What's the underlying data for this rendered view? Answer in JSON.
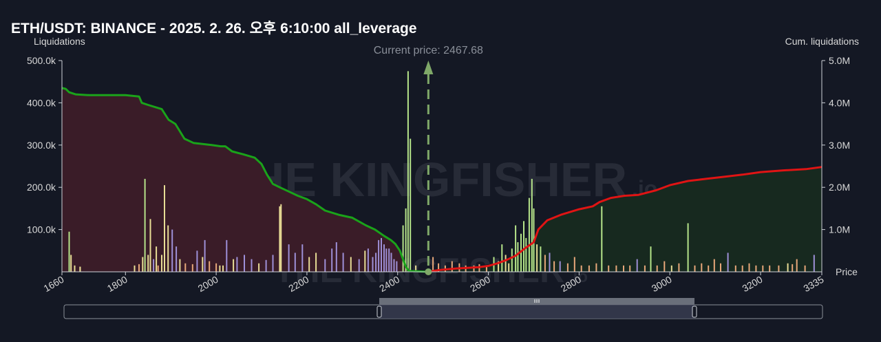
{
  "chart_data": {
    "type": "bar",
    "title": "ETH/USDT: BINANCE - 2025. 2. 26. 오후 6:10:00 all_leverage",
    "ylabel_left": "Liquidations",
    "ylabel_right": "Cum. liquidations",
    "xlabel": "Price",
    "current_price_label": "Current price: 2467.68",
    "current_price": 2467.68,
    "xlim": [
      1660,
      3335
    ],
    "ylim_left": [
      0,
      500000
    ],
    "ylim_right": [
      0,
      5000000
    ],
    "x_ticks": [
      "1660",
      "1800",
      "2000",
      "2200",
      "2400",
      "2600",
      "2800",
      "3000",
      "3200",
      "3335"
    ],
    "y_ticks_left": [
      "100.0k",
      "200.0k",
      "300.0k",
      "400.0k",
      "500.0k"
    ],
    "y_ticks_right": [
      "1.0M",
      "2.0M",
      "3.0M",
      "4.0M",
      "5.0M"
    ],
    "watermark": "THE KINGFISHER",
    "watermark_suffix": ".io",
    "bars": [
      {
        "x": 1676,
        "y": 95000,
        "c": "green"
      },
      {
        "x": 1680,
        "y": 40000,
        "c": "yellow"
      },
      {
        "x": 1688,
        "y": 15000,
        "c": "yellow"
      },
      {
        "x": 1700,
        "y": 12000,
        "c": "yellow"
      },
      {
        "x": 1700,
        "y": 12000,
        "c": "yellow"
      },
      {
        "x": 1820,
        "y": 15000,
        "c": "yellow"
      },
      {
        "x": 1830,
        "y": 18000,
        "c": "orange"
      },
      {
        "x": 1838,
        "y": 35000,
        "c": "yellow"
      },
      {
        "x": 1843,
        "y": 220000,
        "c": "green"
      },
      {
        "x": 1850,
        "y": 40000,
        "c": "yellow"
      },
      {
        "x": 1855,
        "y": 125000,
        "c": "yellow"
      },
      {
        "x": 1862,
        "y": 30000,
        "c": "purple"
      },
      {
        "x": 1868,
        "y": 60000,
        "c": "yellow"
      },
      {
        "x": 1872,
        "y": 15000,
        "c": "orange"
      },
      {
        "x": 1880,
        "y": 40000,
        "c": "yellow"
      },
      {
        "x": 1886,
        "y": 205000,
        "c": "yellow"
      },
      {
        "x": 1894,
        "y": 110000,
        "c": "yellow"
      },
      {
        "x": 1903,
        "y": 100000,
        "c": "purple"
      },
      {
        "x": 1912,
        "y": 60000,
        "c": "purple"
      },
      {
        "x": 1920,
        "y": 30000,
        "c": "yellow"
      },
      {
        "x": 1932,
        "y": 20000,
        "c": "orange"
      },
      {
        "x": 1948,
        "y": 18000,
        "c": "orange"
      },
      {
        "x": 1958,
        "y": 50000,
        "c": "purple"
      },
      {
        "x": 1970,
        "y": 35000,
        "c": "yellow"
      },
      {
        "x": 1975,
        "y": 75000,
        "c": "purple"
      },
      {
        "x": 1985,
        "y": 25000,
        "c": "orange"
      },
      {
        "x": 2000,
        "y": 20000,
        "c": "orange"
      },
      {
        "x": 2008,
        "y": 15000,
        "c": "yellow"
      },
      {
        "x": 2015,
        "y": 15000,
        "c": "yellow"
      },
      {
        "x": 2023,
        "y": 75000,
        "c": "purple"
      },
      {
        "x": 2038,
        "y": 30000,
        "c": "yellow"
      },
      {
        "x": 2046,
        "y": 35000,
        "c": "purple"
      },
      {
        "x": 2062,
        "y": 40000,
        "c": "purple"
      },
      {
        "x": 2078,
        "y": 30000,
        "c": "purple"
      },
      {
        "x": 2094,
        "y": 20000,
        "c": "yellow"
      },
      {
        "x": 2110,
        "y": 28000,
        "c": "purple"
      },
      {
        "x": 2125,
        "y": 40000,
        "c": "purple"
      },
      {
        "x": 2140,
        "y": 155000,
        "c": "yellow"
      },
      {
        "x": 2143,
        "y": 160000,
        "c": "yellow"
      },
      {
        "x": 2160,
        "y": 65000,
        "c": "purple"
      },
      {
        "x": 2174,
        "y": 45000,
        "c": "purple"
      },
      {
        "x": 2190,
        "y": 65000,
        "c": "purple"
      },
      {
        "x": 2205,
        "y": 35000,
        "c": "yellow"
      },
      {
        "x": 2220,
        "y": 45000,
        "c": "yellow"
      },
      {
        "x": 2240,
        "y": 30000,
        "c": "purple"
      },
      {
        "x": 2255,
        "y": 55000,
        "c": "purple"
      },
      {
        "x": 2265,
        "y": 70000,
        "c": "purple"
      },
      {
        "x": 2280,
        "y": 45000,
        "c": "purple"
      },
      {
        "x": 2297,
        "y": 35000,
        "c": "yellow"
      },
      {
        "x": 2315,
        "y": 30000,
        "c": "purple"
      },
      {
        "x": 2328,
        "y": 50000,
        "c": "yellow"
      },
      {
        "x": 2335,
        "y": 55000,
        "c": "purple"
      },
      {
        "x": 2345,
        "y": 35000,
        "c": "purple"
      },
      {
        "x": 2352,
        "y": 45000,
        "c": "purple"
      },
      {
        "x": 2358,
        "y": 75000,
        "c": "purple"
      },
      {
        "x": 2364,
        "y": 80000,
        "c": "purple"
      },
      {
        "x": 2370,
        "y": 65000,
        "c": "purple"
      },
      {
        "x": 2375,
        "y": 55000,
        "c": "purple"
      },
      {
        "x": 2381,
        "y": 55000,
        "c": "purple"
      },
      {
        "x": 2386,
        "y": 45000,
        "c": "purple"
      },
      {
        "x": 2392,
        "y": 30000,
        "c": "purple"
      },
      {
        "x": 2398,
        "y": 25000,
        "c": "purple"
      },
      {
        "x": 2412,
        "y": 110000,
        "c": "green"
      },
      {
        "x": 2418,
        "y": 150000,
        "c": "green"
      },
      {
        "x": 2423,
        "y": 475000,
        "c": "green"
      },
      {
        "x": 2428,
        "y": 315000,
        "c": "green"
      },
      {
        "x": 2440,
        "y": 15000,
        "c": "yellow"
      },
      {
        "x": 2478,
        "y": 35000,
        "c": "orange"
      },
      {
        "x": 2490,
        "y": 20000,
        "c": "orange"
      },
      {
        "x": 2505,
        "y": 15000,
        "c": "orange"
      },
      {
        "x": 2520,
        "y": 25000,
        "c": "orange"
      },
      {
        "x": 2536,
        "y": 20000,
        "c": "orange"
      },
      {
        "x": 2550,
        "y": 15000,
        "c": "orange"
      },
      {
        "x": 2568,
        "y": 15000,
        "c": "orange"
      },
      {
        "x": 2580,
        "y": 18000,
        "c": "orange"
      },
      {
        "x": 2596,
        "y": 15000,
        "c": "orange"
      },
      {
        "x": 2612,
        "y": 35000,
        "c": "green"
      },
      {
        "x": 2622,
        "y": 25000,
        "c": "yellow"
      },
      {
        "x": 2630,
        "y": 65000,
        "c": "green"
      },
      {
        "x": 2638,
        "y": 40000,
        "c": "yellow"
      },
      {
        "x": 2645,
        "y": 20000,
        "c": "yellow"
      },
      {
        "x": 2652,
        "y": 55000,
        "c": "green"
      },
      {
        "x": 2660,
        "y": 110000,
        "c": "green"
      },
      {
        "x": 2665,
        "y": 70000,
        "c": "green"
      },
      {
        "x": 2672,
        "y": 90000,
        "c": "green"
      },
      {
        "x": 2678,
        "y": 120000,
        "c": "green"
      },
      {
        "x": 2683,
        "y": 80000,
        "c": "green"
      },
      {
        "x": 2690,
        "y": 175000,
        "c": "green"
      },
      {
        "x": 2696,
        "y": 220000,
        "c": "green"
      },
      {
        "x": 2700,
        "y": 150000,
        "c": "green"
      },
      {
        "x": 2707,
        "y": 65000,
        "c": "yellow"
      },
      {
        "x": 2715,
        "y": 60000,
        "c": "green"
      },
      {
        "x": 2725,
        "y": 40000,
        "c": "orange"
      },
      {
        "x": 2735,
        "y": 45000,
        "c": "purple"
      },
      {
        "x": 2745,
        "y": 25000,
        "c": "orange"
      },
      {
        "x": 2758,
        "y": 25000,
        "c": "purple"
      },
      {
        "x": 2775,
        "y": 20000,
        "c": "orange"
      },
      {
        "x": 2790,
        "y": 35000,
        "c": "orange"
      },
      {
        "x": 2805,
        "y": 15000,
        "c": "orange"
      },
      {
        "x": 2822,
        "y": 15000,
        "c": "orange"
      },
      {
        "x": 2838,
        "y": 20000,
        "c": "orange"
      },
      {
        "x": 2850,
        "y": 155000,
        "c": "green"
      },
      {
        "x": 2865,
        "y": 15000,
        "c": "orange"
      },
      {
        "x": 2882,
        "y": 15000,
        "c": "orange"
      },
      {
        "x": 2898,
        "y": 15000,
        "c": "orange"
      },
      {
        "x": 2912,
        "y": 15000,
        "c": "orange"
      },
      {
        "x": 2928,
        "y": 30000,
        "c": "purple"
      },
      {
        "x": 2945,
        "y": 15000,
        "c": "orange"
      },
      {
        "x": 2958,
        "y": 60000,
        "c": "green"
      },
      {
        "x": 2972,
        "y": 15000,
        "c": "orange"
      },
      {
        "x": 2988,
        "y": 25000,
        "c": "orange"
      },
      {
        "x": 3004,
        "y": 15000,
        "c": "yellow"
      },
      {
        "x": 3020,
        "y": 20000,
        "c": "orange"
      },
      {
        "x": 3040,
        "y": 115000,
        "c": "green"
      },
      {
        "x": 3055,
        "y": 15000,
        "c": "orange"
      },
      {
        "x": 3070,
        "y": 20000,
        "c": "orange"
      },
      {
        "x": 3085,
        "y": 15000,
        "c": "orange"
      },
      {
        "x": 3098,
        "y": 30000,
        "c": "orange"
      },
      {
        "x": 3112,
        "y": 20000,
        "c": "orange"
      },
      {
        "x": 3128,
        "y": 45000,
        "c": "purple"
      },
      {
        "x": 3145,
        "y": 15000,
        "c": "orange"
      },
      {
        "x": 3160,
        "y": 15000,
        "c": "orange"
      },
      {
        "x": 3175,
        "y": 20000,
        "c": "orange"
      },
      {
        "x": 3190,
        "y": 15000,
        "c": "orange"
      },
      {
        "x": 3205,
        "y": 15000,
        "c": "orange"
      },
      {
        "x": 3220,
        "y": 15000,
        "c": "orange"
      },
      {
        "x": 3240,
        "y": 15000,
        "c": "orange"
      },
      {
        "x": 3260,
        "y": 20000,
        "c": "yellow"
      },
      {
        "x": 3270,
        "y": 18000,
        "c": "orange"
      },
      {
        "x": 3280,
        "y": 30000,
        "c": "orange"
      },
      {
        "x": 3298,
        "y": 15000,
        "c": "orange"
      },
      {
        "x": 3318,
        "y": 40000,
        "c": "purple"
      }
    ],
    "cum_short_side": [
      [
        1660,
        4350000
      ],
      [
        1668,
        4330000
      ],
      [
        1676,
        4250000
      ],
      [
        1690,
        4200000
      ],
      [
        1720,
        4180000
      ],
      [
        1800,
        4180000
      ],
      [
        1830,
        4150000
      ],
      [
        1836,
        4000000
      ],
      [
        1850,
        3950000
      ],
      [
        1880,
        3850000
      ],
      [
        1895,
        3600000
      ],
      [
        1910,
        3500000
      ],
      [
        1930,
        3150000
      ],
      [
        1950,
        3050000
      ],
      [
        1990,
        3000000
      ],
      [
        2010,
        2970000
      ],
      [
        2020,
        2970000
      ],
      [
        2035,
        2850000
      ],
      [
        2060,
        2780000
      ],
      [
        2085,
        2700000
      ],
      [
        2100,
        2550000
      ],
      [
        2112,
        2300000
      ],
      [
        2125,
        2080000
      ],
      [
        2140,
        2000000
      ],
      [
        2160,
        1900000
      ],
      [
        2180,
        1800000
      ],
      [
        2200,
        1720000
      ],
      [
        2220,
        1600000
      ],
      [
        2240,
        1450000
      ],
      [
        2270,
        1350000
      ],
      [
        2300,
        1280000
      ],
      [
        2330,
        1100000
      ],
      [
        2350,
        1000000
      ],
      [
        2370,
        850000
      ],
      [
        2385,
        750000
      ],
      [
        2395,
        660000
      ],
      [
        2405,
        500000
      ],
      [
        2418,
        120000
      ],
      [
        2425,
        20000
      ],
      [
        2467.68,
        0
      ]
    ],
    "cum_long_side": [
      [
        2467.68,
        0
      ],
      [
        2490,
        40000
      ],
      [
        2530,
        80000
      ],
      [
        2580,
        110000
      ],
      [
        2600,
        140000
      ],
      [
        2620,
        200000
      ],
      [
        2640,
        280000
      ],
      [
        2660,
        380000
      ],
      [
        2680,
        550000
      ],
      [
        2700,
        700000
      ],
      [
        2710,
        1000000
      ],
      [
        2730,
        1220000
      ],
      [
        2760,
        1350000
      ],
      [
        2800,
        1480000
      ],
      [
        2830,
        1550000
      ],
      [
        2845,
        1650000
      ],
      [
        2870,
        1750000
      ],
      [
        2900,
        1800000
      ],
      [
        2930,
        1820000
      ],
      [
        2970,
        1930000
      ],
      [
        3000,
        2050000
      ],
      [
        3040,
        2150000
      ],
      [
        3080,
        2200000
      ],
      [
        3120,
        2250000
      ],
      [
        3160,
        2300000
      ],
      [
        3200,
        2360000
      ],
      [
        3250,
        2400000
      ],
      [
        3300,
        2430000
      ],
      [
        3335,
        2480000
      ]
    ],
    "colors": {
      "background": "#141824",
      "short_line": "#1aa31a",
      "short_fill": "#3a1c28",
      "long_line": "#e01414",
      "long_fill": "#17291f",
      "current_price_line": "#7fa868",
      "bar_green": "#b6e58a",
      "bar_yellow": "#e8dd95",
      "bar_purple": "#9e90d8",
      "bar_orange": "#e8a87a",
      "axis_text": "#d8d8d8"
    }
  }
}
